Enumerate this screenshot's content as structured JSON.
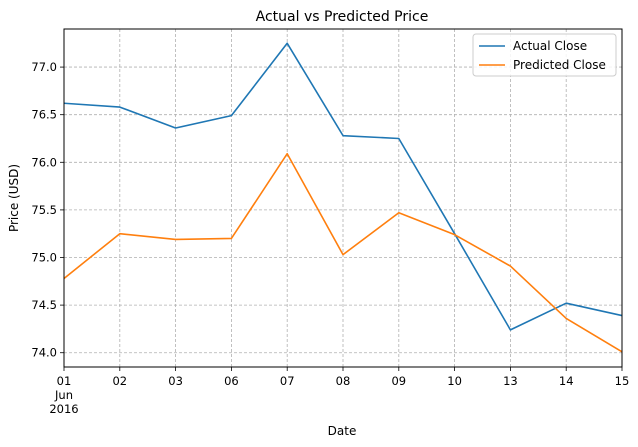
{
  "chart_data": {
    "type": "line",
    "title": "Actual vs Predicted Price",
    "xlabel": "Date",
    "ylabel": "Price (USD)",
    "x": [
      "2016-06-01",
      "2016-06-02",
      "2016-06-03",
      "2016-06-06",
      "2016-06-07",
      "2016-06-08",
      "2016-06-09",
      "2016-06-10",
      "2016-06-13",
      "2016-06-14",
      "2016-06-15"
    ],
    "x_tick_labels": [
      "01",
      "02",
      "03",
      "06",
      "07",
      "08",
      "09",
      "10",
      "13",
      "14",
      "15"
    ],
    "x_tick_sublabel": [
      "Jun",
      "2016"
    ],
    "y_ticks": [
      "74.0",
      "74.5",
      "75.0",
      "75.5",
      "76.0",
      "76.5",
      "77.0"
    ],
    "ylim": [
      73.85,
      77.4
    ],
    "grid": true,
    "legend_position": "top-right",
    "series": [
      {
        "name": "Actual Close",
        "color": "#1f77b4",
        "values": [
          76.62,
          76.58,
          76.36,
          76.49,
          77.25,
          76.28,
          76.25,
          75.25,
          74.24,
          74.52,
          74.39
        ]
      },
      {
        "name": "Predicted Close",
        "color": "#ff7f0e",
        "values": [
          74.78,
          75.25,
          75.19,
          75.2,
          76.09,
          75.03,
          75.47,
          75.24,
          74.91,
          74.36,
          74.01
        ]
      }
    ]
  }
}
